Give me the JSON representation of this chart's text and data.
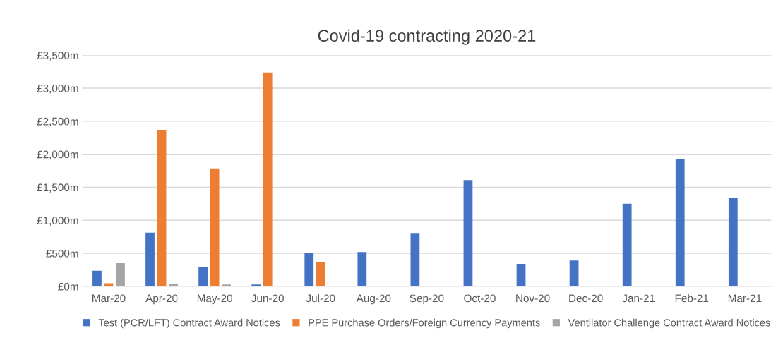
{
  "chart_data": {
    "type": "bar",
    "title": "Covid-19 contracting 2020-21",
    "categories": [
      "Mar-20",
      "Apr-20",
      "May-20",
      "Jun-20",
      "Jul-20",
      "Aug-20",
      "Sep-20",
      "Oct-20",
      "Nov-20",
      "Dec-20",
      "Jan-21",
      "Feb-21",
      "Mar-21"
    ],
    "series": [
      {
        "name": "Test (PCR/LFT) Contract Award Notices",
        "color": "#4472c4",
        "values": [
          235,
          812,
          292,
          27,
          500,
          519,
          808,
          1608,
          341,
          392,
          1251,
          1929,
          1333
        ]
      },
      {
        "name": "PPE Purchase Orders/Foreign Currency Payments",
        "color": "#ed7d31",
        "values": [
          46,
          2369,
          1785,
          3238,
          373,
          null,
          null,
          null,
          null,
          null,
          null,
          null,
          null
        ]
      },
      {
        "name": "Ventilator Challenge Contract Award Notices",
        "color": "#a5a5a5",
        "values": [
          350,
          38,
          27,
          null,
          null,
          null,
          null,
          null,
          null,
          null,
          null,
          null,
          null
        ]
      }
    ],
    "ylim": [
      0,
      3500
    ],
    "yticks": [
      {
        "value": 0,
        "label": "£0m"
      },
      {
        "value": 500,
        "label": "£500m"
      },
      {
        "value": 1000,
        "label": "£1,000m"
      },
      {
        "value": 1500,
        "label": "£1,500m"
      },
      {
        "value": 2000,
        "label": "£2,000m"
      },
      {
        "value": 2500,
        "label": "£2,500m"
      },
      {
        "value": 3000,
        "label": "£3,000m"
      },
      {
        "value": 3500,
        "label": "£3,500m"
      }
    ],
    "grid": "y",
    "legend": "bottom"
  }
}
